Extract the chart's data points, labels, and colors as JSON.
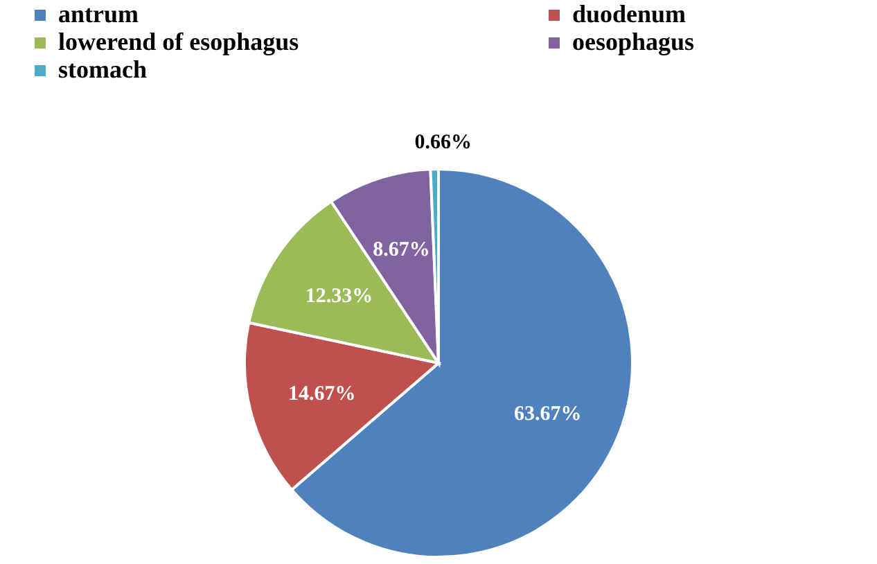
{
  "chart_data": {
    "type": "pie",
    "categories": [
      "antrum",
      "duodenum",
      "lowerend of esophagus",
      "oesophagus",
      "stomach"
    ],
    "values": [
      63.67,
      14.67,
      12.33,
      8.67,
      0.66
    ],
    "colors": [
      "#4f81bd",
      "#c0504d",
      "#9bbb59",
      "#8064a2",
      "#4bacc6"
    ],
    "value_labels": [
      "63.67%",
      "14.67%",
      "12.33%",
      "8.67%",
      "0.66%"
    ],
    "legend": "top"
  }
}
